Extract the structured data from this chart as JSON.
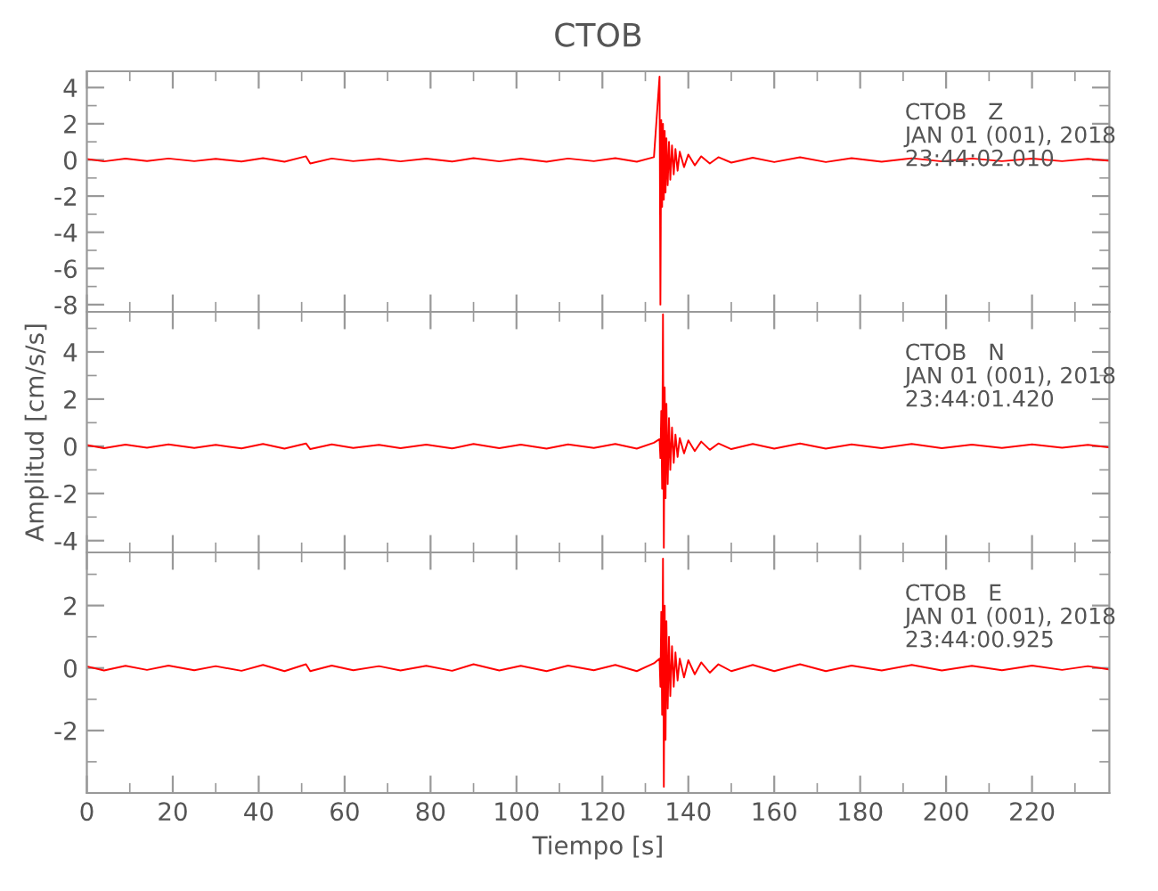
{
  "chart_data": [
    {
      "type": "line",
      "title": "CTOB",
      "annotations": [
        "CTOB   Z\nJAN 01 (001), 2018\n23:44:02.010"
      ],
      "xlim": [
        0,
        238
      ],
      "xticks": [
        0,
        20,
        40,
        60,
        80,
        100,
        120,
        140,
        160,
        180,
        200,
        220
      ],
      "ylim": [
        -8.4,
        4.9
      ],
      "yticks": [
        -8,
        -6,
        -4,
        -2,
        0,
        2,
        4
      ],
      "tick_labels": "y",
      "x": [
        0,
        4,
        9,
        14,
        19,
        25,
        30,
        36,
        41,
        46,
        51,
        52,
        57,
        62,
        68,
        73,
        79,
        85,
        90,
        96,
        101,
        107,
        112,
        118,
        123,
        128,
        132,
        133.3,
        133.5,
        133.7,
        133.9,
        134.1,
        134.3,
        134.5,
        134.7,
        134.9,
        135.2,
        135.5,
        135.8,
        136.2,
        136.6,
        137,
        137.5,
        138,
        139,
        140,
        141.5,
        143,
        145,
        147,
        150,
        155,
        160,
        166,
        172,
        178,
        185,
        192,
        199,
        206,
        213,
        220,
        227,
        233,
        238
      ],
      "series": [
        {
          "color": "#ff0000",
          "values": [
            0.05,
            -0.08,
            0.07,
            -0.06,
            0.08,
            -0.07,
            0.06,
            -0.09,
            0.1,
            -0.1,
            0.2,
            -0.2,
            0.08,
            -0.07,
            0.06,
            -0.08,
            0.07,
            -0.09,
            0.1,
            -0.08,
            0.07,
            -0.1,
            0.08,
            -0.07,
            0.1,
            -0.1,
            0.15,
            4.6,
            -8.0,
            2.2,
            -2.6,
            2.0,
            -2.2,
            1.6,
            -1.8,
            1.2,
            -1.4,
            1.0,
            -1.1,
            0.8,
            -0.8,
            0.6,
            -0.6,
            0.45,
            -0.4,
            0.3,
            -0.3,
            0.2,
            -0.2,
            0.15,
            -0.15,
            0.12,
            -0.12,
            0.15,
            -0.12,
            0.1,
            -0.1,
            0.09,
            -0.08,
            0.08,
            -0.07,
            0.07,
            -0.07,
            0.06,
            -0.05
          ]
        }
      ]
    },
    {
      "type": "line",
      "ylabel": "Amplitud [cm/s/s]",
      "annotations": [
        "CTOB   N\nJAN 01 (001), 2018\n23:44:01.420"
      ],
      "xlim": [
        0,
        238
      ],
      "xticks": [
        0,
        20,
        40,
        60,
        80,
        100,
        120,
        140,
        160,
        180,
        200,
        220
      ],
      "ylim": [
        -4.5,
        5.7
      ],
      "yticks": [
        -4,
        -2,
        0,
        2,
        4
      ],
      "tick_labels": "y",
      "x": [
        0,
        4,
        9,
        14,
        19,
        25,
        30,
        36,
        41,
        46,
        51,
        52,
        57,
        62,
        68,
        73,
        79,
        85,
        90,
        96,
        101,
        107,
        112,
        118,
        123,
        128,
        132,
        133.3,
        133.5,
        133.7,
        133.9,
        134.1,
        134.3,
        134.5,
        134.7,
        134.9,
        135.2,
        135.5,
        135.8,
        136.2,
        136.6,
        137,
        137.5,
        138,
        139,
        140,
        141.5,
        143,
        145,
        147,
        150,
        155,
        160,
        166,
        172,
        178,
        185,
        192,
        199,
        206,
        213,
        220,
        227,
        233,
        238
      ],
      "series": [
        {
          "color": "#ff0000",
          "values": [
            0.05,
            -0.08,
            0.07,
            -0.06,
            0.08,
            -0.07,
            0.06,
            -0.09,
            0.1,
            -0.1,
            0.12,
            -0.12,
            0.08,
            -0.07,
            0.06,
            -0.08,
            0.07,
            -0.09,
            0.1,
            -0.08,
            0.07,
            -0.1,
            0.08,
            -0.07,
            0.1,
            -0.1,
            0.15,
            0.3,
            -0.5,
            1.5,
            -1.8,
            5.6,
            -4.3,
            2.5,
            -2.2,
            1.8,
            -1.6,
            1.2,
            -1.0,
            0.8,
            -0.7,
            0.5,
            -0.45,
            0.35,
            -0.3,
            0.25,
            -0.2,
            0.2,
            -0.15,
            0.12,
            -0.12,
            0.1,
            -0.1,
            0.12,
            -0.1,
            0.08,
            -0.08,
            0.1,
            -0.08,
            0.07,
            -0.07,
            0.08,
            -0.06,
            0.06,
            -0.05
          ]
        }
      ]
    },
    {
      "type": "line",
      "xlabel": "Tiempo [s]",
      "annotations": [
        "CTOB   E\nJAN 01 (001), 2018\n23:44:00.925"
      ],
      "xlim": [
        0,
        238
      ],
      "xticks": [
        0,
        20,
        40,
        60,
        80,
        100,
        120,
        140,
        160,
        180,
        200,
        220
      ],
      "ylim": [
        -4.0,
        3.7
      ],
      "yticks": [
        -2,
        0,
        2
      ],
      "x": [
        0,
        4,
        9,
        14,
        19,
        25,
        30,
        36,
        41,
        46,
        51,
        52,
        57,
        62,
        68,
        73,
        79,
        85,
        90,
        96,
        101,
        107,
        112,
        118,
        123,
        128,
        132,
        133.3,
        133.5,
        133.7,
        133.9,
        134.1,
        134.3,
        134.5,
        134.7,
        134.9,
        135.2,
        135.5,
        135.8,
        136.2,
        136.6,
        137,
        137.5,
        138,
        139,
        140,
        141.5,
        143,
        145,
        147,
        150,
        155,
        160,
        166,
        172,
        178,
        185,
        192,
        199,
        206,
        213,
        220,
        227,
        233,
        238
      ],
      "series": [
        {
          "color": "#ff0000",
          "values": [
            0.05,
            -0.08,
            0.07,
            -0.06,
            0.08,
            -0.07,
            0.06,
            -0.09,
            0.1,
            -0.1,
            0.12,
            -0.1,
            0.08,
            -0.07,
            0.06,
            -0.08,
            0.07,
            -0.09,
            0.12,
            -0.08,
            0.07,
            -0.1,
            0.08,
            -0.07,
            0.1,
            -0.1,
            0.15,
            0.3,
            -0.6,
            1.8,
            -1.5,
            3.5,
            -3.8,
            2.0,
            -2.3,
            1.5,
            -1.3,
            1.0,
            -0.9,
            0.7,
            -0.6,
            0.5,
            -0.4,
            0.3,
            -0.3,
            0.25,
            -0.2,
            0.18,
            -0.15,
            0.12,
            -0.1,
            0.1,
            -0.1,
            0.12,
            -0.1,
            0.08,
            -0.08,
            0.1,
            -0.08,
            0.07,
            -0.07,
            0.08,
            -0.06,
            0.06,
            -0.05
          ]
        }
      ]
    }
  ]
}
